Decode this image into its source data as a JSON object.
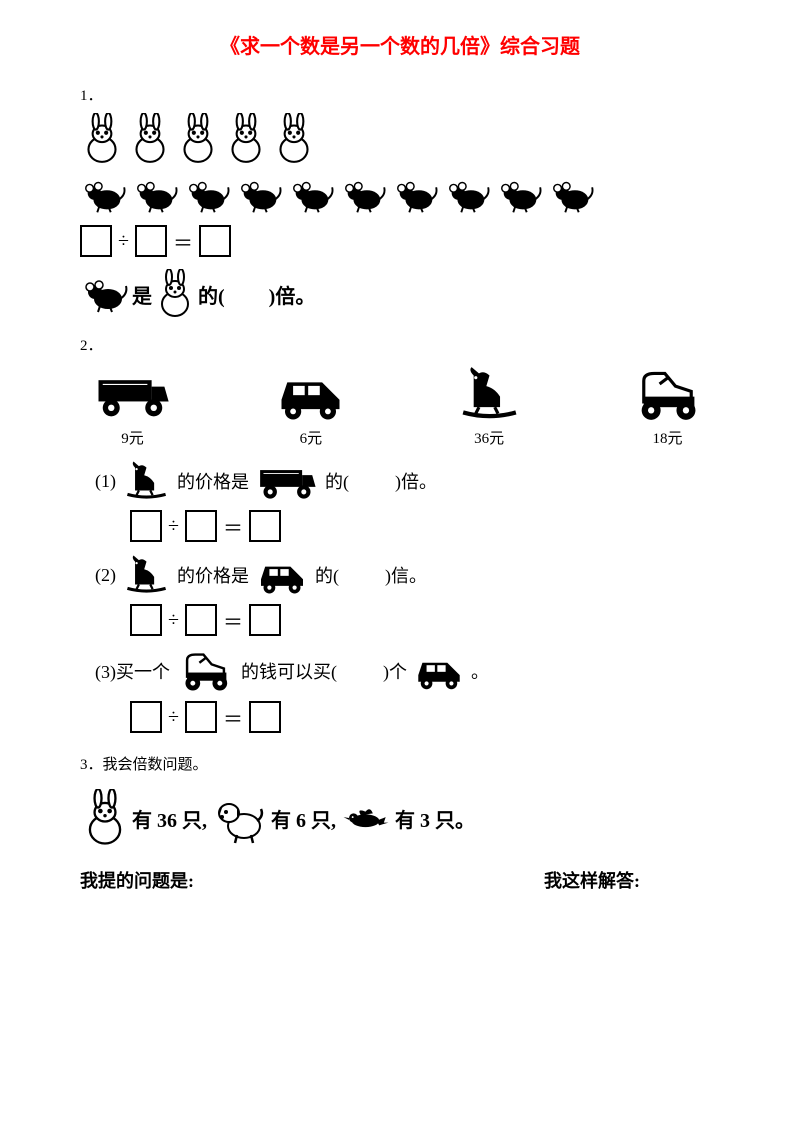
{
  "title": {
    "text": "《求一个数是另一个数的几倍》综合习题",
    "color": "#ff0000"
  },
  "q1": {
    "num": "1．",
    "rabbits_count": 5,
    "mice_count": 10,
    "divide": "÷",
    "equals": "＝",
    "sentence_mid": "是",
    "sentence_end1": "的(",
    "sentence_end2": ")倍。"
  },
  "q2": {
    "num": "2．",
    "toys": [
      {
        "name": "truck",
        "price": "9元"
      },
      {
        "name": "car",
        "price": "6元"
      },
      {
        "name": "horse",
        "price": "36元"
      },
      {
        "name": "kart",
        "price": "18元"
      }
    ],
    "sub1": {
      "prefix": "(1)",
      "mid1": "的价格是",
      "mid2": "的(",
      "end": ")倍。"
    },
    "sub2": {
      "prefix": "(2)",
      "mid1": "的价格是",
      "mid2": "的(",
      "end": ")信。"
    },
    "sub3": {
      "prefix": "(3)买一个",
      "mid1": "的钱可以买(",
      "mid2": ")个",
      "end": "。"
    },
    "divide": "÷",
    "equals": "＝"
  },
  "q3": {
    "num": "3．我会倍数问题。",
    "t1": "有 36 只,",
    "t2": "有 6 只,",
    "t3": "有 3 只。",
    "footer_left": "我提的问题是:",
    "footer_right": "我这样解答:"
  }
}
